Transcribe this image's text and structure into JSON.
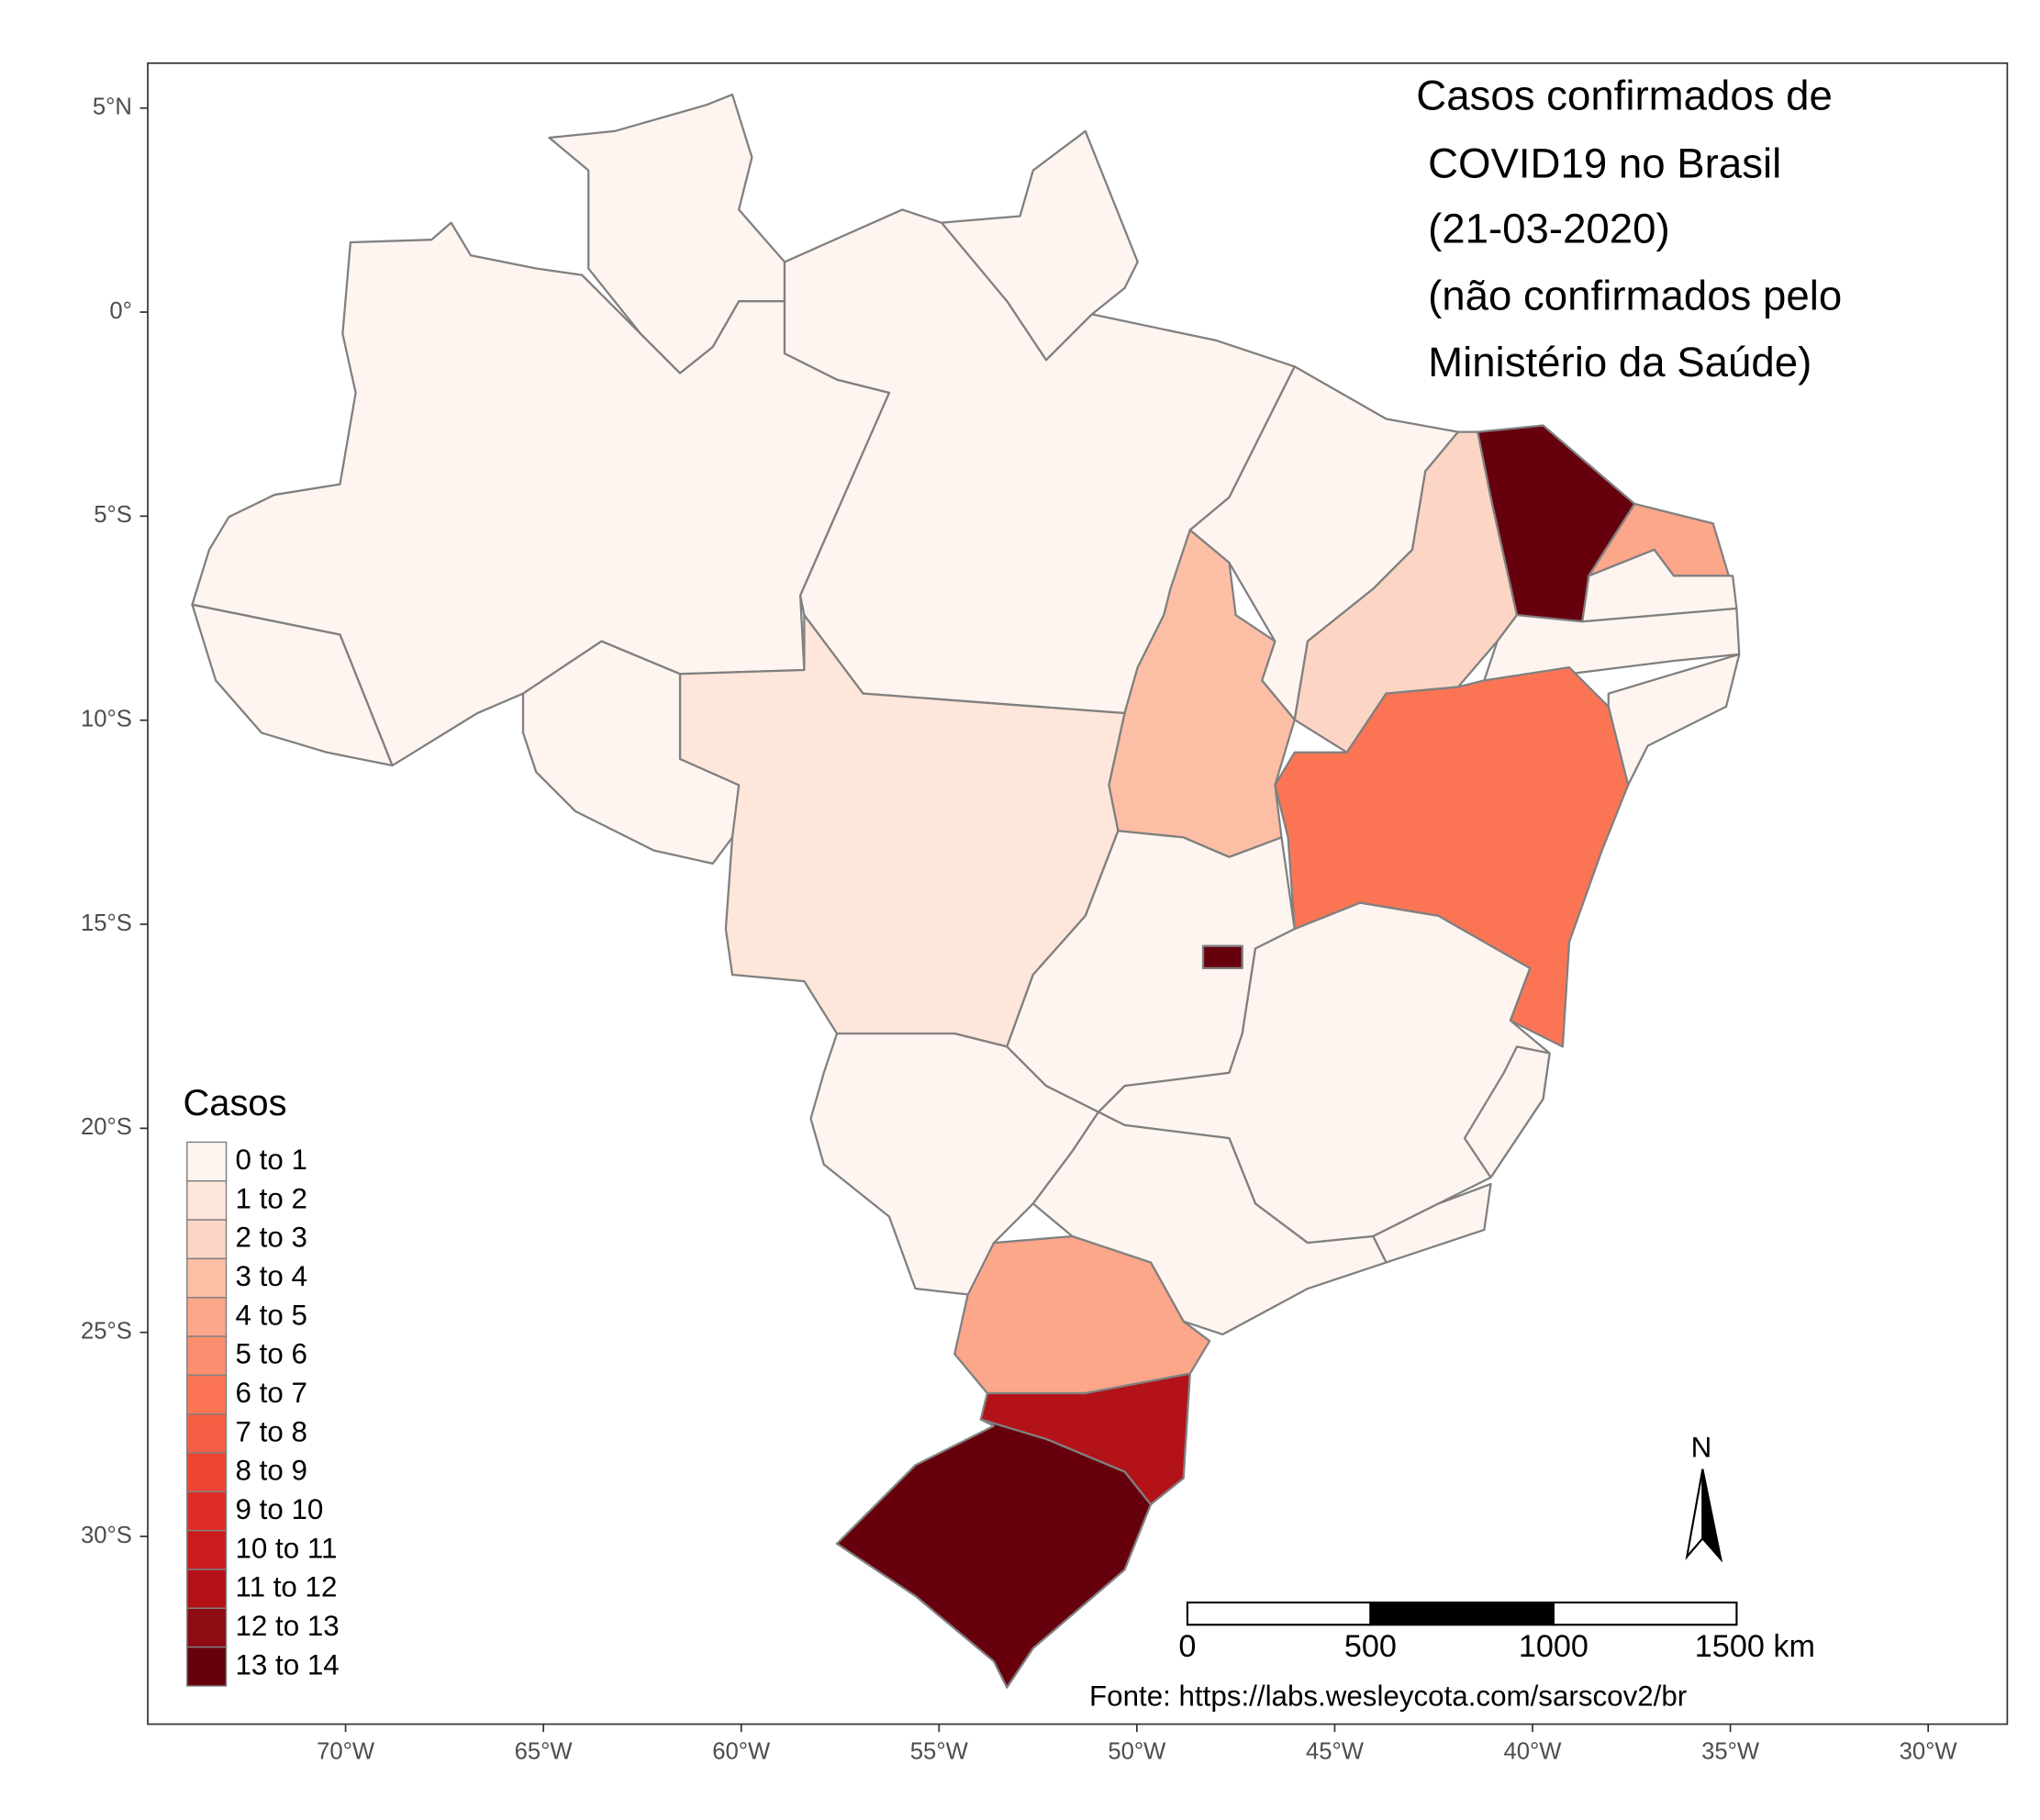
{
  "chart_data": {
    "type": "map",
    "title": [
      "Casos confirmados de",
      "COVID19 no Brasil",
      "(21-03-2020)",
      "(não confirmados pelo",
      "Ministério da Saúde)"
    ],
    "xlim": [
      -75,
      -28
    ],
    "ylim": [
      -34.6,
      6.1
    ],
    "xticks": [
      {
        "value": -70,
        "label": "70°W"
      },
      {
        "value": -65,
        "label": "65°W"
      },
      {
        "value": -60,
        "label": "60°W"
      },
      {
        "value": -55,
        "label": "55°W"
      },
      {
        "value": -50,
        "label": "50°W"
      },
      {
        "value": -45,
        "label": "45°W"
      },
      {
        "value": -40,
        "label": "40°W"
      },
      {
        "value": -35,
        "label": "35°W"
      },
      {
        "value": -30,
        "label": "30°W"
      }
    ],
    "yticks": [
      {
        "value": 5,
        "label": "5°N"
      },
      {
        "value": 0,
        "label": "0°"
      },
      {
        "value": -5,
        "label": "5°S"
      },
      {
        "value": -10,
        "label": "10°S"
      },
      {
        "value": -15,
        "label": "15°S"
      },
      {
        "value": -20,
        "label": "20°S"
      },
      {
        "value": -25,
        "label": "25°S"
      },
      {
        "value": -30,
        "label": "30°S"
      }
    ],
    "legend": {
      "title": "Casos",
      "items": [
        {
          "label": "0 to 1",
          "color": "#fff5f0"
        },
        {
          "label": "1 to 2",
          "color": "#fee6da"
        },
        {
          "label": "2 to 3",
          "color": "#fdd5c4"
        },
        {
          "label": "3 to 4",
          "color": "#fcbfa6"
        },
        {
          "label": "4 to 5",
          "color": "#fca68a"
        },
        {
          "label": "5 to 6",
          "color": "#fc8d6e"
        },
        {
          "label": "6 to 7",
          "color": "#fb7555"
        },
        {
          "label": "7 to 8",
          "color": "#f65e43"
        },
        {
          "label": "8 to 9",
          "color": "#ee4533"
        },
        {
          "label": "9 to 10",
          "color": "#de2d26"
        },
        {
          "label": "10 to 11",
          "color": "#cb1c1d"
        },
        {
          "label": "11 to 12",
          "color": "#b21218"
        },
        {
          "label": "12 to 13",
          "color": "#8e0b13"
        },
        {
          "label": "13 to 14",
          "color": "#67000d"
        }
      ]
    },
    "scale_bar": {
      "ticks": [
        0,
        500,
        1000,
        {
          "value": 1500,
          "label": "1500 km"
        }
      ]
    },
    "north_label": "N",
    "source": "Fonte: https://labs.wesleycota.com/sarscov2/br"
  }
}
